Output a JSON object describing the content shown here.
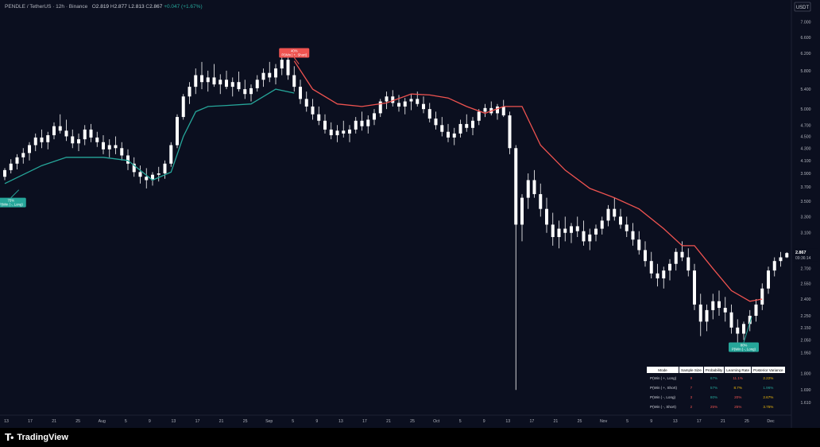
{
  "legend": {
    "symbol": "PENDLE / TetherUS · 12h · Binance",
    "open_label": "O",
    "open": "2.819",
    "high_label": "H",
    "high": "2.877",
    "low_label": "L",
    "low": "2.813",
    "close_label": "C",
    "close": "2.867",
    "change": "+0.047 (+1.67%)"
  },
  "footer": {
    "brand": "TradingView"
  },
  "colors": {
    "up": "#ffffff",
    "down": "#ffffff",
    "band_up": "#26a69a",
    "band_down": "#ef5350",
    "background": "#0b0f1f",
    "axis_text": "#b2b5be",
    "price_badge_bg": "#ffffff"
  },
  "chart_data": {
    "type": "candlestick",
    "currency_label": "USDT",
    "y_scale": "log",
    "ylim": [
      1.6,
      7.3
    ],
    "y_ticks": [
      "7.000",
      "6.600",
      "6.200",
      "5.800",
      "5.400",
      "5.000",
      "4.700",
      "4.500",
      "4.300",
      "4.100",
      "3.900",
      "3.700",
      "3.500",
      "3.300",
      "3.100",
      "2.900",
      "2.700",
      "2.550",
      "2.400",
      "2.250",
      "2.150",
      "2.050",
      "1.950",
      "1.800",
      "1.690",
      "1.610",
      "1.540"
    ],
    "x_ticks": [
      "13",
      "17",
      "21",
      "25",
      "Aug",
      "5",
      "9",
      "13",
      "17",
      "21",
      "25",
      "Sep",
      "5",
      "9",
      "13",
      "17",
      "21",
      "25",
      "Oct",
      "5",
      "9",
      "13",
      "17",
      "21",
      "25",
      "Nov",
      "5",
      "9",
      "13",
      "17",
      "21",
      "25",
      "Dec"
    ],
    "last_price": "2.867",
    "countdown": "09:36:14",
    "candles_12h": [
      [
        3.85,
        3.98,
        3.8,
        3.95
      ],
      [
        3.95,
        4.12,
        3.9,
        4.05
      ],
      [
        4.05,
        4.2,
        3.96,
        4.15
      ],
      [
        4.15,
        4.3,
        4.05,
        4.22
      ],
      [
        4.22,
        4.4,
        4.1,
        4.35
      ],
      [
        4.35,
        4.55,
        4.25,
        4.48
      ],
      [
        4.48,
        4.62,
        4.3,
        4.4
      ],
      [
        4.4,
        4.58,
        4.28,
        4.52
      ],
      [
        4.52,
        4.75,
        4.45,
        4.68
      ],
      [
        4.68,
        4.9,
        4.55,
        4.6
      ],
      [
        4.6,
        4.8,
        4.42,
        4.5
      ],
      [
        4.5,
        4.62,
        4.3,
        4.38
      ],
      [
        4.38,
        4.55,
        4.25,
        4.45
      ],
      [
        4.45,
        4.7,
        4.35,
        4.62
      ],
      [
        4.62,
        4.72,
        4.4,
        4.48
      ],
      [
        4.48,
        4.58,
        4.32,
        4.4
      ],
      [
        4.4,
        4.52,
        4.2,
        4.28
      ],
      [
        4.28,
        4.45,
        4.15,
        4.35
      ],
      [
        4.35,
        4.5,
        4.2,
        4.3
      ],
      [
        4.3,
        4.4,
        4.1,
        4.18
      ],
      [
        4.18,
        4.28,
        3.95,
        4.05
      ],
      [
        4.05,
        4.15,
        3.85,
        3.92
      ],
      [
        3.92,
        4.02,
        3.75,
        3.85
      ],
      [
        3.85,
        3.98,
        3.68,
        3.8
      ],
      [
        3.8,
        3.92,
        3.72,
        3.88
      ],
      [
        3.88,
        4.0,
        3.78,
        3.9
      ],
      [
        3.9,
        4.1,
        3.82,
        4.05
      ],
      [
        4.05,
        4.4,
        4.0,
        4.35
      ],
      [
        4.35,
        4.9,
        4.3,
        4.85
      ],
      [
        4.85,
        5.3,
        4.8,
        5.25
      ],
      [
        5.25,
        5.55,
        5.1,
        5.45
      ],
      [
        5.45,
        5.85,
        5.3,
        5.7
      ],
      [
        5.7,
        6.0,
        5.4,
        5.55
      ],
      [
        5.55,
        5.8,
        5.35,
        5.65
      ],
      [
        5.65,
        5.95,
        5.45,
        5.5
      ],
      [
        5.5,
        5.72,
        5.3,
        5.6
      ],
      [
        5.6,
        5.8,
        5.4,
        5.45
      ],
      [
        5.45,
        5.65,
        5.25,
        5.55
      ],
      [
        5.55,
        5.78,
        5.35,
        5.4
      ],
      [
        5.4,
        5.6,
        5.2,
        5.3
      ],
      [
        5.3,
        5.5,
        5.15,
        5.42
      ],
      [
        5.42,
        5.7,
        5.35,
        5.6
      ],
      [
        5.6,
        5.85,
        5.45,
        5.75
      ],
      [
        5.75,
        6.0,
        5.55,
        5.65
      ],
      [
        5.65,
        5.95,
        5.5,
        5.85
      ],
      [
        5.85,
        6.2,
        5.7,
        6.05
      ],
      [
        6.05,
        6.25,
        5.6,
        5.7
      ],
      [
        5.7,
        5.9,
        5.35,
        5.45
      ],
      [
        5.45,
        5.6,
        5.1,
        5.2
      ],
      [
        5.2,
        5.35,
        4.95,
        5.05
      ],
      [
        5.05,
        5.2,
        4.8,
        4.9
      ],
      [
        4.9,
        5.05,
        4.7,
        4.78
      ],
      [
        4.78,
        4.9,
        4.55,
        4.62
      ],
      [
        4.62,
        4.75,
        4.45,
        4.52
      ],
      [
        4.52,
        4.7,
        4.4,
        4.6
      ],
      [
        4.6,
        4.78,
        4.48,
        4.55
      ],
      [
        4.55,
        4.7,
        4.4,
        4.62
      ],
      [
        4.62,
        4.85,
        4.55,
        4.78
      ],
      [
        4.78,
        4.95,
        4.6,
        4.68
      ],
      [
        4.68,
        4.88,
        4.55,
        4.8
      ],
      [
        4.8,
        5.0,
        4.7,
        4.92
      ],
      [
        4.92,
        5.2,
        4.85,
        5.15
      ],
      [
        5.15,
        5.35,
        5.0,
        5.25
      ],
      [
        5.25,
        5.38,
        5.05,
        5.12
      ],
      [
        5.12,
        5.28,
        4.95,
        5.05
      ],
      [
        5.05,
        5.22,
        4.9,
        5.15
      ],
      [
        5.15,
        5.3,
        4.98,
        5.2
      ],
      [
        5.2,
        5.35,
        5.05,
        5.1
      ],
      [
        5.1,
        5.25,
        4.92,
        5.0
      ],
      [
        5.0,
        5.12,
        4.75,
        4.82
      ],
      [
        4.82,
        4.95,
        4.62,
        4.7
      ],
      [
        4.7,
        4.85,
        4.5,
        4.58
      ],
      [
        4.58,
        4.72,
        4.4,
        4.48
      ],
      [
        4.48,
        4.65,
        4.35,
        4.55
      ],
      [
        4.55,
        4.8,
        4.48,
        4.72
      ],
      [
        4.72,
        4.9,
        4.58,
        4.65
      ],
      [
        4.65,
        4.85,
        4.52,
        4.78
      ],
      [
        4.78,
        5.0,
        4.7,
        4.95
      ],
      [
        4.95,
        5.1,
        4.85,
        5.02
      ],
      [
        5.02,
        5.15,
        4.88,
        4.92
      ],
      [
        4.92,
        5.1,
        4.8,
        5.05
      ],
      [
        5.05,
        5.18,
        4.85,
        4.88
      ],
      [
        4.88,
        4.95,
        4.2,
        4.3
      ],
      [
        4.3,
        4.35,
        1.69,
        3.2
      ],
      [
        3.2,
        3.6,
        3.0,
        3.55
      ],
      [
        3.55,
        3.9,
        3.4,
        3.8
      ],
      [
        3.8,
        3.95,
        3.55,
        3.6
      ],
      [
        3.6,
        3.75,
        3.3,
        3.4
      ],
      [
        3.4,
        3.55,
        3.1,
        3.2
      ],
      [
        3.2,
        3.35,
        2.95,
        3.05
      ],
      [
        3.05,
        3.25,
        2.92,
        3.15
      ],
      [
        3.15,
        3.3,
        3.0,
        3.1
      ],
      [
        3.1,
        3.22,
        2.98,
        3.18
      ],
      [
        3.18,
        3.3,
        3.05,
        3.12
      ],
      [
        3.12,
        3.25,
        2.95,
        3.0
      ],
      [
        3.0,
        3.15,
        2.9,
        3.08
      ],
      [
        3.08,
        3.2,
        3.0,
        3.15
      ],
      [
        3.15,
        3.3,
        3.08,
        3.25
      ],
      [
        3.25,
        3.45,
        3.18,
        3.4
      ],
      [
        3.4,
        3.55,
        3.25,
        3.3
      ],
      [
        3.3,
        3.4,
        3.15,
        3.2
      ],
      [
        3.2,
        3.3,
        3.05,
        3.12
      ],
      [
        3.12,
        3.22,
        2.95,
        3.02
      ],
      [
        3.02,
        3.12,
        2.85,
        2.9
      ],
      [
        2.9,
        3.0,
        2.72,
        2.78
      ],
      [
        2.78,
        2.88,
        2.6,
        2.65
      ],
      [
        2.65,
        2.75,
        2.52,
        2.6
      ],
      [
        2.6,
        2.72,
        2.5,
        2.68
      ],
      [
        2.68,
        2.8,
        2.58,
        2.75
      ],
      [
        2.75,
        2.92,
        2.68,
        2.88
      ],
      [
        2.88,
        3.0,
        2.78,
        2.82
      ],
      [
        2.82,
        2.92,
        2.62,
        2.68
      ],
      [
        2.68,
        2.75,
        2.3,
        2.35
      ],
      [
        2.35,
        2.45,
        2.08,
        2.2
      ],
      [
        2.2,
        2.35,
        2.12,
        2.3
      ],
      [
        2.3,
        2.45,
        2.22,
        2.38
      ],
      [
        2.38,
        2.48,
        2.25,
        2.32
      ],
      [
        2.32,
        2.42,
        2.2,
        2.28
      ],
      [
        2.28,
        2.35,
        2.1,
        2.15
      ],
      [
        2.15,
        2.22,
        2.02,
        2.1
      ],
      [
        2.1,
        2.2,
        2.05,
        2.18
      ],
      [
        2.18,
        2.3,
        2.12,
        2.25
      ],
      [
        2.25,
        2.4,
        2.2,
        2.35
      ],
      [
        2.35,
        2.55,
        2.3,
        2.5
      ],
      [
        2.5,
        2.72,
        2.45,
        2.68
      ],
      [
        2.68,
        2.82,
        2.62,
        2.78
      ],
      [
        2.78,
        2.88,
        2.72,
        2.82
      ],
      [
        2.82,
        2.877,
        2.813,
        2.867
      ]
    ],
    "band_segments": [
      {
        "color": "up",
        "points": [
          [
            0,
            3.75
          ],
          [
            6,
            4.02
          ],
          [
            10,
            4.15
          ],
          [
            16,
            4.15
          ],
          [
            20,
            4.1
          ],
          [
            24,
            3.8
          ],
          [
            27,
            3.92
          ],
          [
            29,
            4.5
          ],
          [
            31,
            4.95
          ],
          [
            33,
            5.05
          ],
          [
            36,
            5.07
          ],
          [
            40,
            5.1
          ],
          [
            44,
            5.4
          ],
          [
            47,
            5.32
          ]
        ]
      },
      {
        "color": "down",
        "points": [
          [
            47,
            6.02
          ],
          [
            50,
            5.4
          ],
          [
            54,
            5.1
          ],
          [
            58,
            5.05
          ],
          [
            62,
            5.12
          ],
          [
            66,
            5.3
          ],
          [
            69,
            5.28
          ],
          [
            72,
            5.22
          ],
          [
            75,
            5.05
          ],
          [
            78,
            4.92
          ],
          [
            81,
            5.05
          ],
          [
            84,
            5.05
          ],
          [
            87,
            4.35
          ],
          [
            91,
            3.95
          ],
          [
            95,
            3.68
          ],
          [
            99,
            3.55
          ],
          [
            103,
            3.4
          ],
          [
            107,
            3.15
          ],
          [
            110,
            2.95
          ],
          [
            112,
            2.95
          ],
          [
            115,
            2.7
          ],
          [
            118,
            2.48
          ],
          [
            121,
            2.38
          ],
          [
            123,
            2.4
          ]
        ]
      }
    ],
    "annotations": [
      {
        "id": "long-1",
        "pct": "75%",
        "text": "P(Win | -, Long)",
        "type": "long",
        "bar": 1,
        "price": 3.55,
        "anchor_price": 3.66
      },
      {
        "id": "short-1",
        "pct": "40%",
        "text": "P(Win | +, Short)",
        "type": "short",
        "bar": 47,
        "price": 6.1,
        "anchor_price": 5.95
      },
      {
        "id": "long-2",
        "pct": "80%",
        "text": "P(Win | -, Long)",
        "type": "long",
        "bar": 120,
        "price": 2.03,
        "anchor_price": 2.24
      }
    ],
    "table": {
      "headers": [
        "Mode",
        "Sample Size",
        "Probability",
        "Learning Rate",
        "Posterior Variance"
      ],
      "rows": [
        {
          "mode": "P(Win | +, Long)",
          "sample": "9",
          "prob": "67%",
          "rate": "11.1%",
          "var": "2.22%",
          "prob_color": "green",
          "rate_color": "red",
          "var_color": "yellow"
        },
        {
          "mode": "P(Win | +, Short)",
          "sample": "7",
          "prob": "57%",
          "rate": "8.7%",
          "var": "1.96%",
          "prob_color": "green",
          "rate_color": "yellow",
          "var_color": "green"
        },
        {
          "mode": "P(Win | -, Long)",
          "sample": "3",
          "prob": "80%",
          "rate": "20%",
          "var": "2.67%",
          "prob_color": "green",
          "rate_color": "red",
          "var_color": "yellow"
        },
        {
          "mode": "P(Win | -, Short)",
          "sample": "2",
          "prob": "25%",
          "rate": "25%",
          "var": "3.75%",
          "prob_color": "red",
          "rate_color": "red",
          "var_color": "yellow"
        }
      ]
    }
  }
}
